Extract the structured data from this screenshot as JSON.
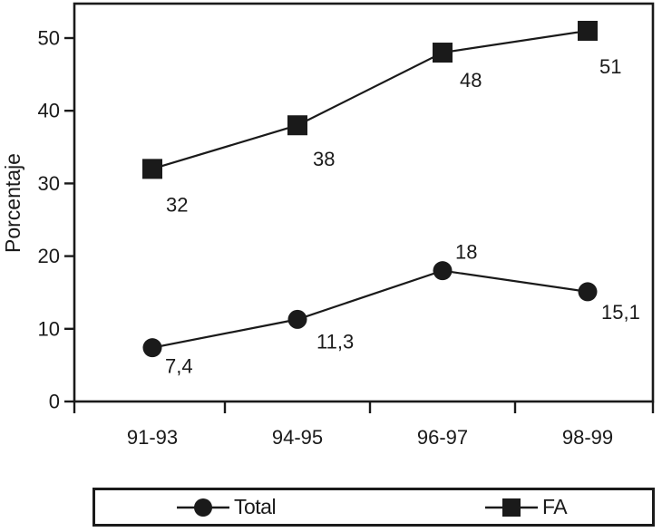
{
  "chart_data": {
    "type": "line",
    "title": "",
    "xlabel": "",
    "ylabel": "Porcentaje",
    "categories": [
      "91-93",
      "94-95",
      "96-97",
      "98-99"
    ],
    "ylim": [
      0,
      55
    ],
    "yticks": [
      0,
      10,
      20,
      30,
      40,
      50
    ],
    "grid": false,
    "legend_position": "bottom-box",
    "series": [
      {
        "name": "Total",
        "marker": "circle",
        "values": [
          7.4,
          11.3,
          18,
          15.1
        ],
        "point_labels": [
          "7,4",
          "11,3",
          "18",
          "15,1"
        ]
      },
      {
        "name": "FA",
        "marker": "square",
        "values": [
          32,
          38,
          48,
          51
        ],
        "point_labels": [
          "32",
          "38",
          "48",
          "51"
        ]
      }
    ],
    "colors": {
      "line": "#1a1a1a",
      "marker": "#1a1a1a",
      "text": "#1a1a1a",
      "background": "#ffffff"
    }
  },
  "legend": {
    "entries": [
      {
        "label": "Total",
        "marker": "circle"
      },
      {
        "label": "FA",
        "marker": "square"
      }
    ]
  }
}
